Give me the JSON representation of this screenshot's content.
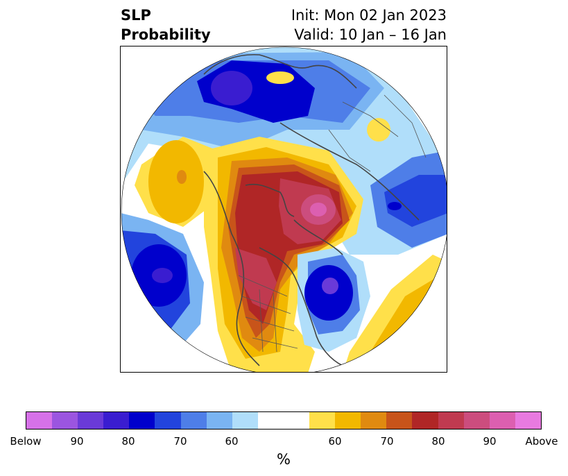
{
  "title": {
    "left_line1": "SLP",
    "left_line2": "Probability",
    "right_line1": "Init: Mon 02 Jan 2023",
    "right_line2": "Valid: 10 Jan – 16 Jan"
  },
  "colorbar": {
    "colors": [
      "#d671e8",
      "#9b55e0",
      "#6a3ad8",
      "#3a1dd0",
      "#0000cc",
      "#2244dd",
      "#4e7ee8",
      "#7ab4f2",
      "#b0defa",
      "#ffffff",
      "#ffffff",
      "#ffe04a",
      "#f2b800",
      "#e08a10",
      "#c8541a",
      "#b02626",
      "#c03a50",
      "#cc4d7e",
      "#dc5fb0",
      "#e87ae0"
    ],
    "tick_labels": [
      "Below",
      "90",
      "80",
      "70",
      "60",
      "60",
      "70",
      "80",
      "90",
      "Above"
    ],
    "unit": "%"
  },
  "map": {
    "projection": "north-polar-stereographic",
    "anomaly_regions": [
      {
        "name": "canada-arctic-russia-high",
        "sign": "above",
        "peak_percent": 100
      },
      {
        "name": "alaska-bering-low",
        "sign": "below",
        "peak_percent": 80
      },
      {
        "name": "north-pacific-high",
        "sign": "above",
        "peak_percent": 60
      },
      {
        "name": "barents-low",
        "sign": "below",
        "peak_percent": 80
      },
      {
        "name": "north-atlantic-low",
        "sign": "below",
        "peak_percent": 90
      },
      {
        "name": "eastern-pacific-high",
        "sign": "above",
        "peak_percent": 70
      },
      {
        "name": "siberia-low",
        "sign": "below",
        "peak_percent": 80
      }
    ]
  }
}
